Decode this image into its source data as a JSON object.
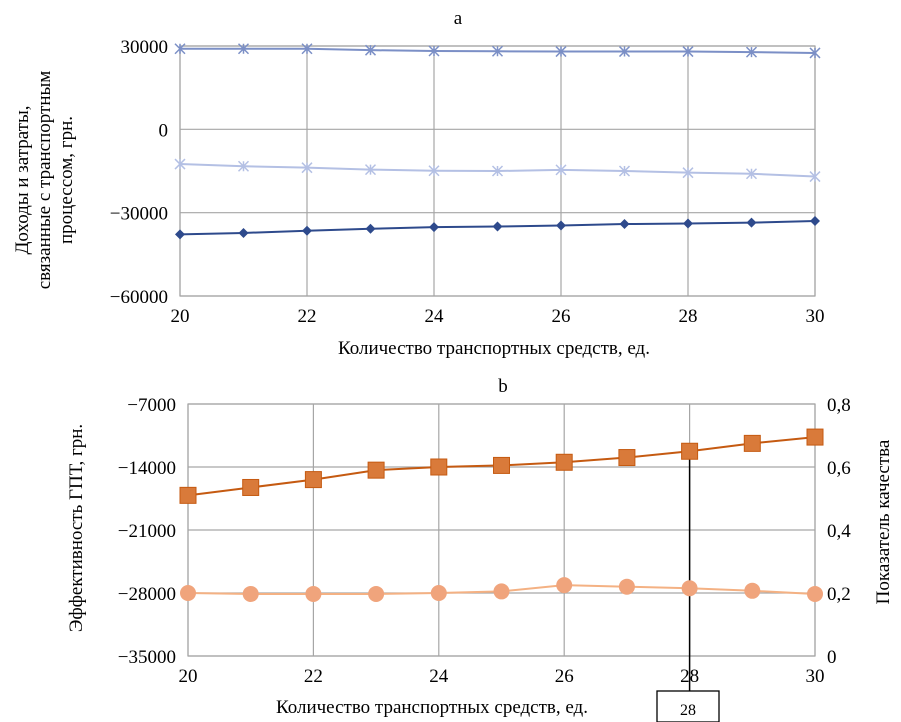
{
  "chart_data": [
    {
      "panel_label": "a",
      "type": "line",
      "xlabel": "Количество транспортных средств, ед.",
      "ylabel_lines": [
        "Доходы и затраты,",
        "связанные с транспортным",
        "процессом, грн."
      ],
      "x": [
        20,
        21,
        22,
        23,
        24,
        25,
        26,
        27,
        28,
        29,
        30
      ],
      "xlim": [
        20,
        30
      ],
      "ylim": [
        -60000,
        30000
      ],
      "x_ticks": [
        "20",
        "22",
        "24",
        "26",
        "28",
        "30"
      ],
      "x_tick_values": [
        20,
        22,
        24,
        26,
        28,
        30
      ],
      "y_ticks": [
        "30000",
        "0",
        "−30000",
        "−60000"
      ],
      "y_tick_values": [
        30000,
        0,
        -30000,
        -60000
      ],
      "grid": true,
      "series": [
        {
          "values": [
            29000,
            29000,
            29000,
            28500,
            28200,
            28100,
            28000,
            28000,
            28000,
            27800,
            27500
          ],
          "color": "#7b8fc6",
          "marker": "x"
        },
        {
          "values": [
            -12500,
            -13300,
            -13800,
            -14500,
            -14900,
            -15000,
            -14600,
            -15000,
            -15600,
            -16000,
            -17000
          ],
          "color": "#b4c0e4",
          "marker": "x"
        },
        {
          "values": [
            -37800,
            -37300,
            -36500,
            -35800,
            -35200,
            -35000,
            -34600,
            -34100,
            -33900,
            -33600,
            -33000
          ],
          "color": "#2e4a8c",
          "marker": "diamond"
        }
      ]
    },
    {
      "panel_label": "b",
      "type": "line",
      "xlabel": "Количество транспортных средств, ед.",
      "ylabel": "Эффективность ГПТ, грн.",
      "y2label": "Показатель качества",
      "x": [
        20,
        21,
        22,
        23,
        24,
        25,
        26,
        27,
        28,
        29,
        30
      ],
      "xlim": [
        20,
        30
      ],
      "ylim": [
        -35000,
        -7000
      ],
      "y2lim": [
        0,
        0.8
      ],
      "x_ticks": [
        "20",
        "22",
        "24",
        "26",
        "28",
        "30"
      ],
      "x_tick_values": [
        20,
        22,
        24,
        26,
        28,
        30
      ],
      "y_ticks": [
        "−7000",
        "−14000",
        "−21000",
        "−28000",
        "−35000"
      ],
      "y_tick_values": [
        -7000,
        -14000,
        -21000,
        -28000,
        -35000
      ],
      "y2_ticks": [
        "0,8",
        "0,6",
        "0,4",
        "0,2",
        "0"
      ],
      "y2_tick_values": [
        0.8,
        0.6,
        0.4,
        0.2,
        0
      ],
      "grid": true,
      "series": [
        {
          "axis": "right",
          "values": [
            0.51,
            0.535,
            0.56,
            0.59,
            0.6,
            0.605,
            0.615,
            0.63,
            0.65,
            0.675,
            0.695
          ],
          "color": "#c55a11",
          "marker_color": "#d97a3a",
          "marker": "square"
        },
        {
          "axis": "right",
          "values": [
            0.2,
            0.197,
            0.197,
            0.197,
            0.2,
            0.205,
            0.225,
            0.22,
            0.215,
            0.207,
            0.197
          ],
          "color": "#f4b183",
          "marker_color": "#f0a47c",
          "marker": "circle"
        }
      ],
      "annotation": {
        "text": "28",
        "x": 28
      }
    }
  ]
}
